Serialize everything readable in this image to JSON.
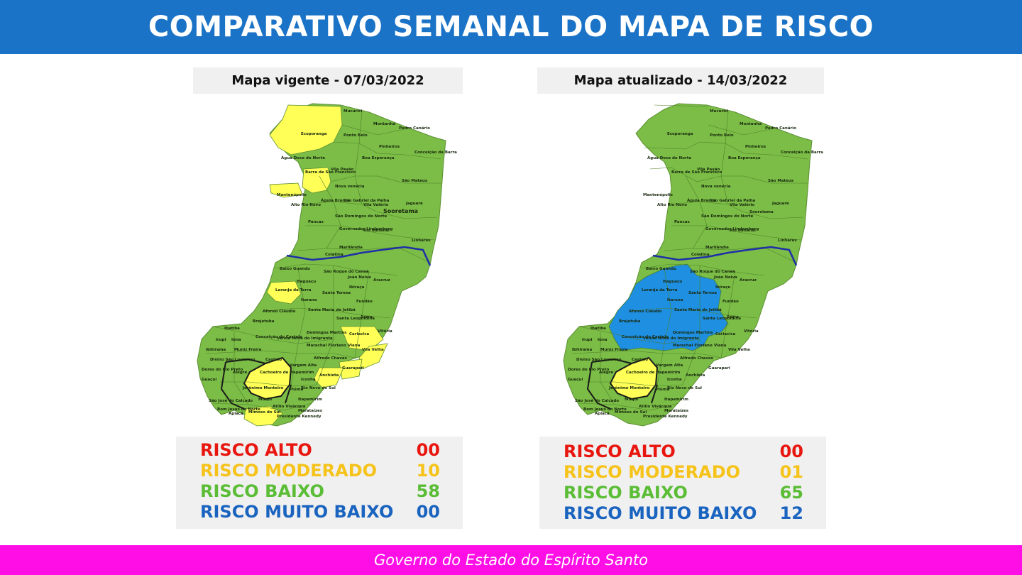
{
  "header": {
    "title": "COMPARATIVO SEMANAL DO MAPA DE RISCO"
  },
  "colors": {
    "header_bg": "#1a73c6",
    "footer_bg": "#ff0fe6",
    "low_risk": "#7bbd46",
    "moderate_risk": "#ffff57",
    "very_low_risk": "#1e8fe1",
    "river": "#1f2fa8"
  },
  "maps": [
    {
      "title": "Mapa vigente - 07/03/2022",
      "legend": [
        {
          "label": "RISCO ALTO",
          "value": "00",
          "color": "#e8160f"
        },
        {
          "label": "RISCO MODERADO",
          "value": "10",
          "color": "#f6c31a"
        },
        {
          "label": "RISCO BAIXO",
          "value": "58",
          "color": "#5bbd36"
        },
        {
          "label": "RISCO MUITO BAIXO",
          "value": "00",
          "color": "#1a64c0"
        }
      ],
      "labels": [
        "Mucurici",
        "Montanha",
        "Pedro Canário",
        "Ecoporanga",
        "Ponto Belo",
        "Pinheiros",
        "Conceição da Barra",
        "Boa Esperança",
        "Água Doce do Norte",
        "Barra de São Francisco",
        "Vila Pavão",
        "Nova venécia",
        "São Mateus",
        "Mantenópolis",
        "Alto Rio Novo",
        "Águia Branca",
        "São Gabriel da Palha",
        "Vila Valério",
        "Jaguaré",
        "Sooretama",
        "São Domingos do Norte",
        "Pancas",
        "Governador Lindemberg",
        "Rio Bananal",
        "Linhares",
        "Marilândia",
        "Colatina",
        "Baixo Guandu",
        "São Roque do Canaã",
        "João Neiva",
        "Aracruz",
        "Itaguaçu",
        "Ibiraçu",
        "Laranja da Terra",
        "Santa Teresa",
        "Itarana",
        "Fundão",
        "Afonso Cláudio",
        "Santa Maria de Jetibá",
        "Brejetuba",
        "Serra",
        "Santa Leopoldina",
        "Ibatiba",
        "Domingos Martins",
        "Cariacica",
        "Vitória",
        "Conceição do Castelo",
        "Venda Nova do Imigrante",
        "Irupi",
        "Iúna",
        "Marechal Floriano",
        "Viana",
        "Vila Velha",
        "Ibitirama",
        "Muniz Freire",
        "Castelo",
        "Alfredo Chaves",
        "Guarapari",
        "Divino São Lourenço",
        "Alegre",
        "Cachoeiro de Itapemirim",
        "Vargem Alta",
        "Anchieta",
        "Dores do Rio Preto",
        "Guaçuí",
        "Jerônimo Monteiro",
        "Iconha",
        "Rio Novo do Sul",
        "Piúma",
        "Muqui",
        "Itapemirim",
        "São José do Calçado",
        "Bom Jesus do Norte",
        "Apiacá",
        "Atílio Vivácqua",
        "Marataízes",
        "Mimoso do Sul",
        "Presidente Kennedy"
      ]
    },
    {
      "title": "Mapa atualizado - 14/03/2022",
      "legend": [
        {
          "label": "RISCO ALTO",
          "value": "00",
          "color": "#e8160f"
        },
        {
          "label": "RISCO MODERADO",
          "value": "01",
          "color": "#f6c31a"
        },
        {
          "label": "RISCO BAIXO",
          "value": "65",
          "color": "#5bbd36"
        },
        {
          "label": "RISCO MUITO BAIXO",
          "value": "12",
          "color": "#1a64c0"
        }
      ],
      "labels": [
        "Mucurici",
        "Montanha",
        "Pedro Canário",
        "Ecoporanga",
        "Ponto Belo",
        "Pinheiros",
        "Conceição da Barra",
        "Boa Esperança",
        "Água Doce do Norte",
        "Barra de São Francisco",
        "Vila Pavão",
        "Nova venécia",
        "São Mateus",
        "Mantenópolis",
        "Alto Rio Novo",
        "Águia Branca",
        "São Gabriel da Palha",
        "Vila Valério",
        "Jaguaré",
        "Sooretama",
        "São Domingos do Norte",
        "Pancas",
        "Governador Lindemberg",
        "Rio Bananal",
        "Linhares",
        "Marilândia",
        "Colatina",
        "Baixo Guandu",
        "São Roque do Canaã",
        "João Neiva",
        "Aracruz",
        "Itaguaçu",
        "Ibiraçu",
        "Laranja da Terra",
        "Santa Teresa",
        "Itarana",
        "Fundão",
        "Afonso Cláudio",
        "Santa Maria de Jetibá",
        "Brejetuba",
        "Serra",
        "Santa Leopoldina",
        "Ibatiba",
        "Domingos Martins",
        "Cariacica",
        "Vitória",
        "Conceição do Castelo",
        "Venda Nova do Imigrante",
        "Irupi",
        "Iúna",
        "Marechal Floriano",
        "Viana",
        "Vila Velha",
        "Ibitirama",
        "Muniz Freire",
        "Castelo",
        "Alfredo Chaves",
        "Guarapari",
        "Divino São Lourenço",
        "Alegre",
        "Cachoeiro de Itapemirim",
        "Vargem Alta",
        "Anchieta",
        "Dores do Rio Preto",
        "Guaçuí",
        "Jerônimo Monteiro",
        "Iconha",
        "Rio Novo do Sul",
        "Piúma",
        "Muqui",
        "Itapemirim",
        "São José do Calçado",
        "Bom Jesus do Norte",
        "Apiacá",
        "Atílio Vivácqua",
        "Marataízes",
        "Mimoso do Sul",
        "Presidente Kennedy"
      ]
    }
  ],
  "footer": {
    "text": "Governo do Estado do Espírito Santo"
  }
}
